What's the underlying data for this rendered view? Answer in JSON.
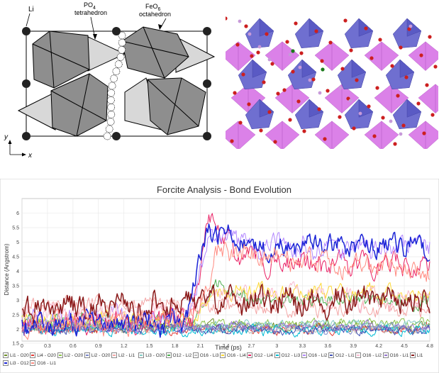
{
  "structure_figure": {
    "label_li": "Li",
    "label_po4_line1": "PO",
    "label_po4_sub": "4",
    "label_po4_line2": "tetrahedron",
    "label_feo6_line1": "FeO",
    "label_feo6_sub": "6",
    "label_feo6_line2": "octahedron",
    "axis_y": "y",
    "axis_x": "x",
    "colors": {
      "dark_poly": "#8e8e8e",
      "light_poly": "#d8d8d8",
      "atom": "#222222"
    }
  },
  "render_figure": {
    "colors": {
      "fe_octa": "#6f6fd0",
      "p_tetra": "#d874e6",
      "oxygen": "#cc1f1f",
      "lithium": "#c79ad9"
    }
  },
  "chart_data": {
    "type": "line",
    "title": "Forcite Analysis - Bond Evolution",
    "xlabel": "Time (ps)",
    "ylabel": "Distance (Angstrom)",
    "xlim": [
      0,
      4.8
    ],
    "ylim": [
      1.6,
      6.5
    ],
    "xticks": [
      "0",
      "0.3",
      "0.6",
      "0.9",
      "1.2",
      "1.5",
      "1.8",
      "2.1",
      "2.4",
      "2.7",
      "3",
      "3.3",
      "3.6",
      "3.9",
      "4.2",
      "4.5",
      "4.8"
    ],
    "yticks": [
      "1.5",
      "2",
      "2.5",
      "3",
      "3.5",
      "4",
      "4.5",
      "5",
      "5.5",
      "6"
    ],
    "series": [
      {
        "name": "Li1 - O20",
        "color": "#6b8e23",
        "segments": [
          [
            0,
            2.1
          ],
          [
            4.8,
            2.1
          ]
        ],
        "noise": 0.12
      },
      {
        "name": "Li4 - O20",
        "color": "#e53935",
        "segments": [
          [
            0,
            2.0
          ],
          [
            4.8,
            2.0
          ]
        ],
        "noise": 0.12
      },
      {
        "name": "Li2 - O20",
        "color": "#8bc34a",
        "segments": [
          [
            0,
            2.2
          ],
          [
            4.8,
            2.2
          ]
        ],
        "noise": 0.12
      },
      {
        "name": "Li2 - O20",
        "color": "#7986cb",
        "segments": [
          [
            0,
            2.05
          ],
          [
            4.8,
            2.05
          ]
        ],
        "noise": 0.12
      },
      {
        "name": "Li2 - Li1",
        "color": "#f4a6a6",
        "segments": [
          [
            0,
            2.8
          ],
          [
            2.5,
            2.8
          ],
          [
            4.8,
            2.7
          ]
        ],
        "noise": 0.22
      },
      {
        "name": "Li3 - O20",
        "color": "#80cbc4",
        "segments": [
          [
            0,
            2.15
          ],
          [
            4.8,
            2.15
          ]
        ],
        "noise": 0.12
      },
      {
        "name": "O12 - Li2",
        "color": "#4caf50",
        "segments": [
          [
            0,
            2.25
          ],
          [
            2.0,
            2.25
          ],
          [
            2.3,
            3.5
          ],
          [
            2.8,
            3.0
          ],
          [
            4.8,
            3.0
          ]
        ],
        "noise": 0.2
      },
      {
        "name": "O16 - Li3",
        "color": "#bdbdbd",
        "segments": [
          [
            0,
            2.0
          ],
          [
            4.8,
            2.0
          ]
        ],
        "noise": 0.1
      },
      {
        "name": "O16 - Li4",
        "color": "#fdd835",
        "segments": [
          [
            0,
            2.3
          ],
          [
            2.0,
            2.3
          ],
          [
            2.3,
            3.3
          ],
          [
            4.8,
            3.2
          ]
        ],
        "noise": 0.22
      },
      {
        "name": "O12 - Li4",
        "color": "#e91e63",
        "segments": [
          [
            0,
            2.2
          ],
          [
            2.0,
            2.3
          ],
          [
            2.2,
            5.8
          ],
          [
            2.5,
            4.6
          ],
          [
            3.2,
            4.2
          ],
          [
            4.8,
            4.3
          ]
        ],
        "noise": 0.3
      },
      {
        "name": "O12 - Li3",
        "color": "#00bcd4",
        "segments": [
          [
            0,
            1.95
          ],
          [
            4.8,
            1.95
          ]
        ],
        "noise": 0.12
      },
      {
        "name": "O16 - Li2",
        "color": "#b388ff",
        "segments": [
          [
            0,
            2.3
          ],
          [
            2.0,
            2.4
          ],
          [
            2.2,
            5.4
          ],
          [
            2.8,
            4.8
          ],
          [
            4.8,
            4.8
          ]
        ],
        "noise": 0.3
      },
      {
        "name": "O12 - Li1",
        "color": "#3f51b5",
        "segments": [
          [
            0,
            2.0
          ],
          [
            4.8,
            2.0
          ]
        ],
        "noise": 0.12
      },
      {
        "name": "O16 - Li2",
        "color": "#f8bbd0",
        "segments": [
          [
            0,
            2.5
          ],
          [
            2.0,
            2.6
          ],
          [
            2.3,
            3.2
          ],
          [
            4.8,
            3.0
          ]
        ],
        "noise": 0.25
      },
      {
        "name": "O16 - Li1",
        "color": "#9575cd",
        "segments": [
          [
            0,
            2.1
          ],
          [
            4.8,
            2.1
          ]
        ],
        "noise": 0.12
      },
      {
        "name": "Li1",
        "color": "#8b1a1a",
        "segments": [
          [
            0,
            2.7
          ],
          [
            1.7,
            2.8
          ],
          [
            2.0,
            3.0
          ],
          [
            4.8,
            3.0
          ]
        ],
        "noise": 0.35
      },
      {
        "name": "Li3 - O12",
        "color": "#1a23d6",
        "segments": [
          [
            0,
            2.2
          ],
          [
            1.9,
            2.2
          ],
          [
            2.2,
            5.4
          ],
          [
            2.8,
            4.8
          ],
          [
            4.8,
            4.9
          ]
        ],
        "noise": 0.3
      },
      {
        "name": "O16 - Li1",
        "color": "#ff8a80",
        "segments": [
          [
            0,
            2.2
          ],
          [
            2.0,
            2.3
          ],
          [
            2.3,
            4.7
          ],
          [
            4.8,
            4.0
          ]
        ],
        "noise": 0.3
      }
    ]
  }
}
